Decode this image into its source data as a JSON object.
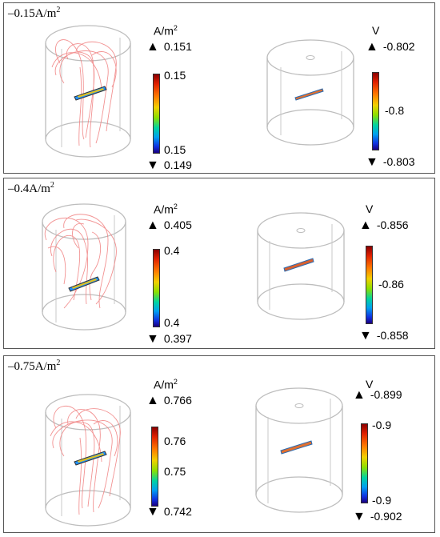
{
  "panels": [
    {
      "title": "–0.15A/m",
      "title_sup": "2",
      "current": {
        "unit": "A/m",
        "unit_sup": "2",
        "max": "0.151",
        "min": "0.149",
        "ticks": [
          "0.15",
          "0.15"
        ]
      },
      "potential": {
        "unit": "V",
        "max": "-0.802",
        "min": "-0.803",
        "ticks": [
          "-0.8"
        ]
      }
    },
    {
      "title": "–0.4A/m",
      "title_sup": "2",
      "current": {
        "unit": "A/m",
        "unit_sup": "2",
        "max": "0.405",
        "min": "0.397",
        "ticks": [
          "0.4",
          "0.4"
        ]
      },
      "potential": {
        "unit": "V",
        "max": "-0.856",
        "min": "-0.858",
        "ticks": [
          "-0.86"
        ]
      }
    },
    {
      "title": "–0.75A/m",
      "title_sup": "2",
      "current": {
        "unit": "A/m",
        "unit_sup": "2",
        "max": "0.766",
        "min": "0.742",
        "ticks": [
          "0.76",
          "0.75"
        ]
      },
      "potential": {
        "unit": "V",
        "max": "-0.899",
        "min": "-0.902",
        "ticks": [
          "-0.9",
          "-0.9"
        ]
      }
    }
  ],
  "symbols": {
    "max_marker": "▲",
    "min_marker": "▼"
  },
  "colors": {
    "streamline": "#f08080",
    "cylinder": "#bdbdbd"
  }
}
